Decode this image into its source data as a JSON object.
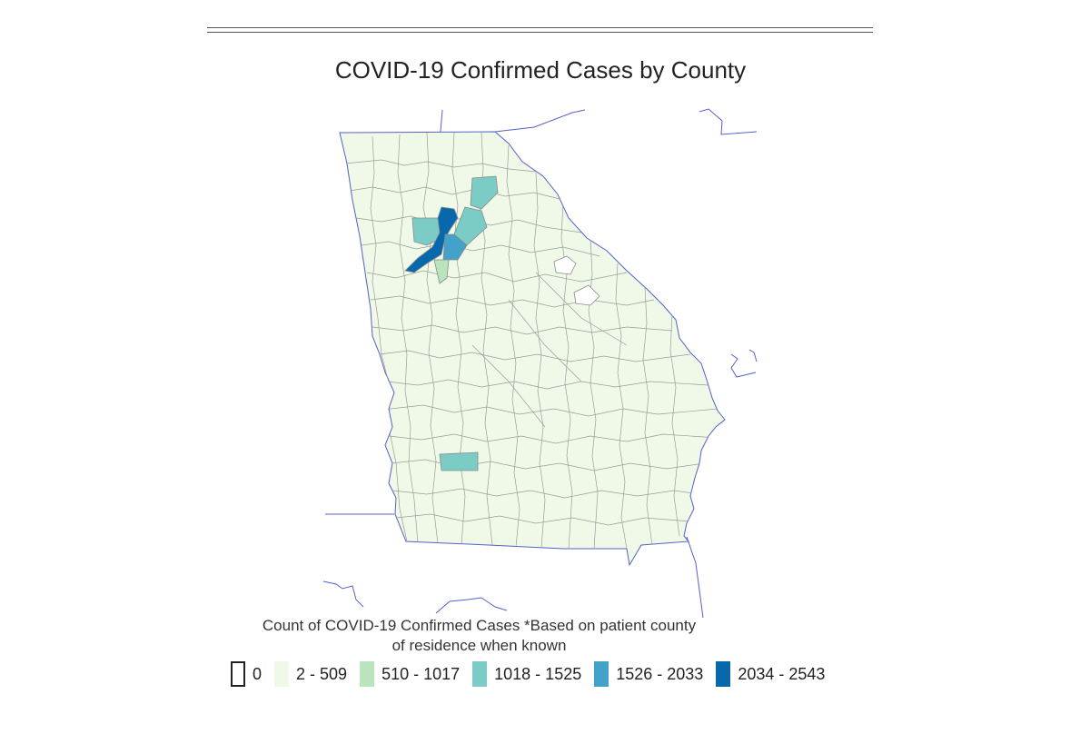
{
  "title": "COVID-19 Confirmed Cases by County",
  "legend": {
    "caption_line1": "Count of COVID-19 Confirmed Cases *Based on patient county",
    "caption_line2": "of residence when known",
    "items": [
      {
        "label": "0",
        "color": "#ffffff",
        "empty": true
      },
      {
        "label": "2 - 509",
        "color": "#f0f9e8"
      },
      {
        "label": "510 - 1017",
        "color": "#bae4bc"
      },
      {
        "label": "1018 - 1525",
        "color": "#7bccc4"
      },
      {
        "label": "1526 - 2033",
        "color": "#43a2ca"
      },
      {
        "label": "2034 - 2543",
        "color": "#0868ac"
      }
    ]
  },
  "colors": {
    "county_fill": "#f0f9e8",
    "county_border": "#999999",
    "state_border": "#5560c8",
    "no_data": "#ffffff"
  }
}
